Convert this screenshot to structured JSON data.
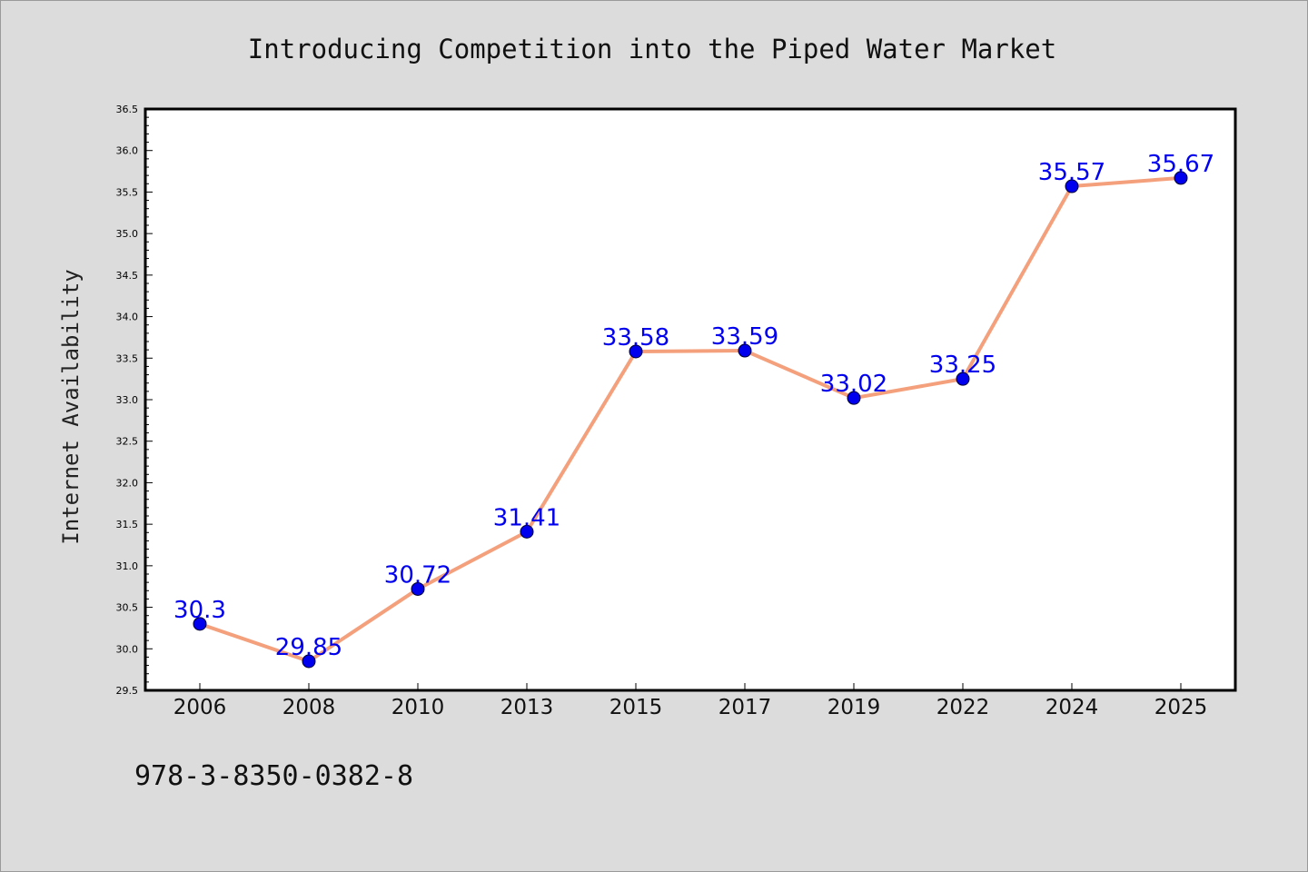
{
  "chart_data": {
    "type": "line",
    "title": "Introducing Competition into the Piped Water Market",
    "xlabel": "",
    "ylabel": "Internet Availability",
    "categories": [
      "2006",
      "2008",
      "2010",
      "2013",
      "2015",
      "2017",
      "2019",
      "2022",
      "2024",
      "2025"
    ],
    "series": [
      {
        "values": [
          30.3,
          29.85,
          30.72,
          31.41,
          33.58,
          33.59,
          33.02,
          33.25,
          35.57,
          35.67
        ],
        "data_labels": [
          "30.3",
          "29.85",
          "30.72",
          "31.41",
          "33.58",
          "33.59",
          "33.02",
          "33.25",
          "35.57",
          "35.67"
        ],
        "line_color": "#f4a07c",
        "marker_color": "#0000ee",
        "label_color": "#0000ee"
      }
    ],
    "ylim": [
      29.5,
      36.5
    ],
    "yticks": [
      "29.5",
      "30.0",
      "30.5",
      "31.0",
      "31.5",
      "32.0",
      "32.5",
      "33.0",
      "33.5",
      "34.0",
      "34.5",
      "35.0",
      "35.5",
      "36.0",
      "36.5"
    ],
    "grid": false,
    "legend": "none"
  },
  "footer": {
    "isbn": "978-3-8350-0382-8"
  }
}
